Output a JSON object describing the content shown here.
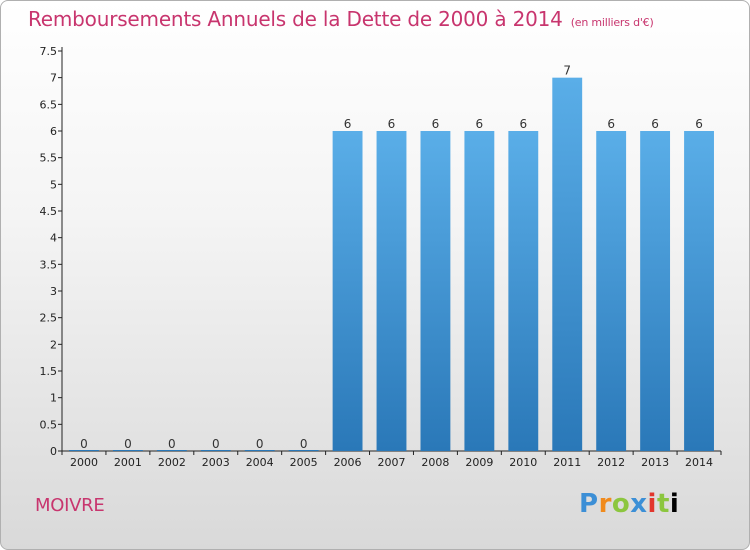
{
  "chart_data": {
    "type": "bar",
    "title": "Remboursements Annuels de la Dette de 2000 à 2014",
    "unit": "(en milliers d'€)",
    "categories": [
      "2000",
      "2001",
      "2002",
      "2003",
      "2004",
      "2005",
      "2006",
      "2007",
      "2008",
      "2009",
      "2010",
      "2011",
      "2012",
      "2013",
      "2014"
    ],
    "values": [
      0,
      0,
      0,
      0,
      0,
      0,
      6,
      6,
      6,
      6,
      6,
      7,
      6,
      6,
      6
    ],
    "value_labels": [
      "0",
      "0",
      "0",
      "0",
      "0",
      "0",
      "6",
      "6",
      "6",
      "6",
      "6",
      "7",
      "6",
      "6",
      "6"
    ],
    "y_ticks": [
      0,
      0.5,
      1,
      1.5,
      2,
      2.5,
      3,
      3.5,
      4,
      4.5,
      5,
      5.5,
      6,
      6.5,
      7,
      7.5
    ],
    "y_tick_labels": [
      "0",
      "0.5",
      "1",
      "1.5",
      "2",
      "2.5",
      "3",
      "3.5",
      "4",
      "4.5",
      "5",
      "5.5",
      "6",
      "6.5",
      "7",
      "7.5"
    ],
    "ylim": [
      0,
      7.5
    ],
    "grid": false,
    "bar_color_top": "#5aaee8",
    "bar_color_bottom": "#2a78b8"
  },
  "commune": "MOIVRE",
  "brand": [
    "P",
    "r",
    "o",
    "x",
    "i",
    "t",
    "i"
  ]
}
